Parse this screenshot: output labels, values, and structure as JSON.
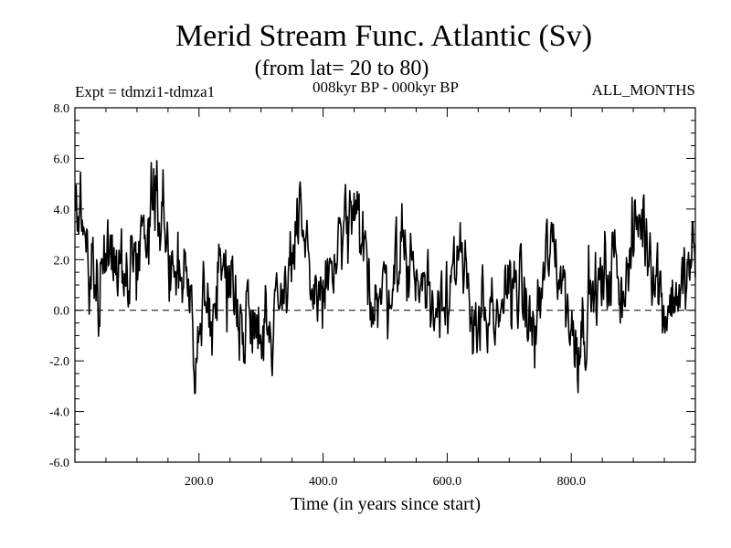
{
  "chart_data": {
    "type": "line",
    "title": "Merid Stream Func. Atlantic (Sv)",
    "subtitle": "(from lat= 20 to 80)",
    "expt_label": "Expt = tdmzi1-tdmza1",
    "period_label": "008kyr BP - 000kyr BP",
    "months_label": "ALL_MONTHS",
    "xlabel": "Time (in years since start)",
    "ylabel": "",
    "xlim": [
      0,
      1000
    ],
    "ylim": [
      -6,
      8
    ],
    "x_ticks": [
      200,
      400,
      600,
      800
    ],
    "x_tick_labels": [
      "200.0",
      "400.0",
      "600.0",
      "800.0"
    ],
    "y_ticks": [
      -6,
      -4,
      -2,
      0,
      2,
      4,
      6,
      8
    ],
    "y_tick_labels": [
      "-6.0",
      "-4.0",
      "-2.0",
      "0.0",
      "2.0",
      "4.0",
      "6.0",
      "8.0"
    ],
    "zero_line": {
      "y": 0,
      "style": "dashed"
    },
    "line_color": "#000000",
    "series": [
      {
        "name": "tdmzi1-tdmza1",
        "anchors_x": [
          0,
          10,
          20,
          30,
          40,
          50,
          60,
          70,
          80,
          90,
          100,
          110,
          120,
          130,
          140,
          150,
          160,
          170,
          180,
          185,
          190,
          195,
          200,
          210,
          220,
          230,
          240,
          250,
          260,
          270,
          280,
          290,
          300,
          310,
          320,
          330,
          340,
          350,
          355,
          360,
          370,
          380,
          390,
          400,
          410,
          420,
          430,
          440,
          450,
          460,
          470,
          480,
          490,
          500,
          510,
          520,
          530,
          540,
          550,
          560,
          570,
          580,
          590,
          600,
          610,
          620,
          630,
          640,
          650,
          660,
          670,
          680,
          690,
          700,
          710,
          720,
          730,
          740,
          750,
          760,
          770,
          780,
          790,
          800,
          810,
          820,
          830,
          840,
          850,
          860,
          870,
          880,
          890,
          900,
          910,
          920,
          930,
          940,
          950,
          960,
          970,
          980,
          990,
          1000
        ],
        "anchors_y": [
          3.0,
          3.3,
          2.7,
          1.5,
          1.2,
          2.5,
          2.8,
          1.8,
          1.5,
          1.6,
          2.0,
          3.0,
          4.2,
          4.8,
          4.3,
          2.3,
          1.7,
          1.4,
          0.6,
          -0.6,
          -1.4,
          -1.8,
          -1.1,
          -0.2,
          0.6,
          1.3,
          1.6,
          1.0,
          0.4,
          -0.2,
          -0.4,
          0.2,
          -0.2,
          -0.8,
          -0.4,
          0.8,
          1.6,
          2.0,
          2.6,
          3.1,
          2.0,
          1.3,
          0.8,
          0.6,
          1.2,
          1.9,
          2.5,
          3.3,
          3.4,
          2.6,
          1.6,
          1.0,
          0.4,
          0.7,
          1.4,
          2.2,
          2.5,
          2.0,
          1.3,
          1.1,
          0.5,
          0.3,
          0.7,
          1.4,
          1.8,
          1.1,
          1.0,
          0.2,
          -0.2,
          -0.3,
          -0.9,
          -1.1,
          0.2,
          1.4,
          1.3,
          0.6,
          -0.3,
          -1.0,
          0.3,
          2.0,
          2.3,
          1.9,
          0.9,
          -0.9,
          -1.1,
          -0.3,
          0.4,
          0.8,
          0.8,
          1.5,
          2.0,
          1.1,
          1.4,
          2.6,
          3.8,
          3.2,
          2.4,
          1.1,
          0.3,
          0.2,
          0.9,
          0.7,
          1.5,
          2.2
        ]
      }
    ]
  }
}
